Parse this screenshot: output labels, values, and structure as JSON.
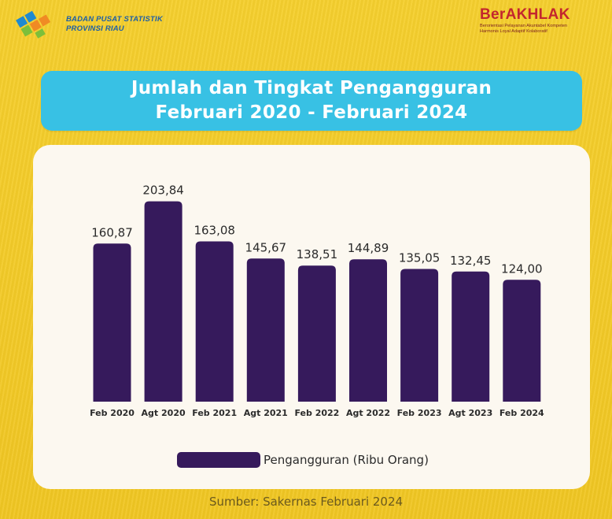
{
  "header": {
    "org_line1": "BADAN PUSAT STATISTIK",
    "org_line2": "PROVINSI RIAU",
    "brand": "BerAKHLAK",
    "brand_tag_line1": "Berorientasi Pelayanan Akuntabel Kompeten",
    "brand_tag_line2": "Harmonis Loyal Adaptif Kolaboratif"
  },
  "title": {
    "line1": "Jumlah dan Tingkat Pengangguran",
    "line2": "Februari 2020 - Februari 2024"
  },
  "source": "Sumber: Sakernas Februari 2024",
  "colors": {
    "background": "#f2c92a",
    "title_box": "#38c1e4",
    "bar": "#361a5c",
    "card": "#fcf8f0"
  },
  "chart_data": {
    "type": "bar",
    "categories": [
      "Feb 2020",
      "Agt 2020",
      "Feb 2021",
      "Agt 2021",
      "Feb 2022",
      "Agt 2022",
      "Feb 2023",
      "Agt 2023",
      "Feb 2024"
    ],
    "series": [
      {
        "name": "Pengangguran (Ribu Orang)",
        "values": [
          160.87,
          203.84,
          163.08,
          145.67,
          138.51,
          144.89,
          135.05,
          132.45,
          124.0
        ],
        "labels": [
          "160,87",
          "203,84",
          "163,08",
          "145,67",
          "138,51",
          "144,89",
          "135,05",
          "132,45",
          "124,00"
        ]
      }
    ],
    "ylim": [
      0,
      210
    ],
    "grid": false,
    "legend_position": "bottom"
  }
}
